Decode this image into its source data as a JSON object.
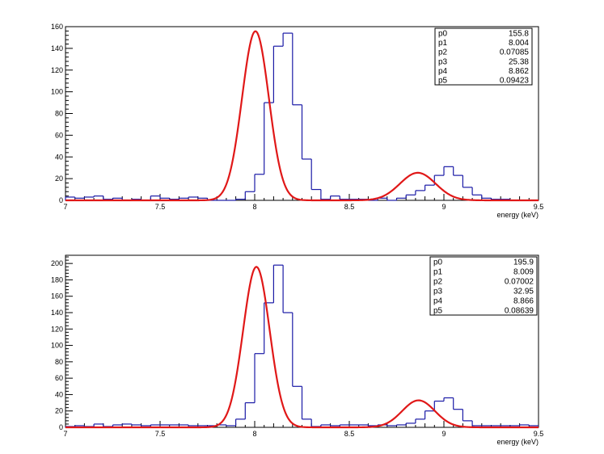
{
  "chart_data": [
    {
      "type": "histogram",
      "xlabel": "energy (keV)",
      "xlim": [
        7,
        9.5
      ],
      "ylim": [
        0,
        160
      ],
      "x_ticks": [
        "7",
        "7.5",
        "8",
        "8.5",
        "9",
        "9.5"
      ],
      "y_ticks": [
        "0",
        "20",
        "40",
        "60",
        "80",
        "100",
        "120",
        "140",
        "160"
      ],
      "bins": {
        "start": 7.0,
        "width": 0.05,
        "counts": [
          3,
          2,
          3,
          4,
          1,
          2,
          0,
          1,
          0,
          4,
          2,
          1,
          2,
          3,
          2,
          0,
          0,
          0,
          1,
          8,
          24,
          90,
          142,
          154,
          88,
          38,
          10,
          1,
          4,
          1,
          1,
          1,
          0,
          2,
          0,
          2,
          5,
          9,
          14,
          23,
          31,
          23,
          12,
          5,
          2,
          1,
          1,
          0,
          0,
          0
        ]
      },
      "series": [
        {
          "name": "",
          "kind": "histogram",
          "color": "#1a1aa6"
        },
        {
          "name": "",
          "kind": "fit",
          "color": "#e01818"
        }
      ],
      "fit": {
        "p0": 155.8,
        "p1": 8.004,
        "p2": 0.07085,
        "p3": 25.38,
        "p4": 8.862,
        "p5": 0.09423
      },
      "stats": [
        {
          "label": "p0",
          "value": "155.8"
        },
        {
          "label": "p1",
          "value": "8.004"
        },
        {
          "label": "p2",
          "value": "0.07085"
        },
        {
          "label": "p3",
          "value": "25.38"
        },
        {
          "label": "p4",
          "value": "8.862"
        },
        {
          "label": "p5",
          "value": "0.09423"
        }
      ]
    },
    {
      "type": "histogram",
      "xlabel": "energy (keV)",
      "xlim": [
        7,
        9.5
      ],
      "ylim": [
        0,
        210
      ],
      "x_ticks": [
        "7",
        "7.5",
        "8",
        "8.5",
        "9",
        "9.5"
      ],
      "y_ticks": [
        "0",
        "20",
        "40",
        "60",
        "80",
        "100",
        "120",
        "140",
        "160",
        "180",
        "200"
      ],
      "bins": {
        "start": 7.0,
        "width": 0.05,
        "counts": [
          1,
          2,
          1,
          4,
          1,
          3,
          4,
          3,
          2,
          3,
          3,
          3,
          3,
          2,
          2,
          2,
          3,
          2,
          10,
          30,
          90,
          152,
          198,
          140,
          50,
          10,
          1,
          3,
          2,
          3,
          3,
          3,
          2,
          3,
          2,
          3,
          5,
          10,
          20,
          32,
          36,
          22,
          8,
          2,
          2,
          2,
          2,
          2,
          3,
          2
        ]
      },
      "series": [
        {
          "name": "",
          "kind": "histogram",
          "color": "#1a1aa6"
        },
        {
          "name": "",
          "kind": "fit",
          "color": "#e01818"
        }
      ],
      "fit": {
        "p0": 195.9,
        "p1": 8.009,
        "p2": 0.07002,
        "p3": 32.95,
        "p4": 8.866,
        "p5": 0.08639
      },
      "stats": [
        {
          "label": "p0",
          "value": "195.9"
        },
        {
          "label": "p1",
          "value": "8.009"
        },
        {
          "label": "p2",
          "value": "0.07002"
        },
        {
          "label": "p3",
          "value": "32.95"
        },
        {
          "label": "p4",
          "value": "8.866"
        },
        {
          "label": "p5",
          "value": "0.08639"
        }
      ]
    }
  ]
}
